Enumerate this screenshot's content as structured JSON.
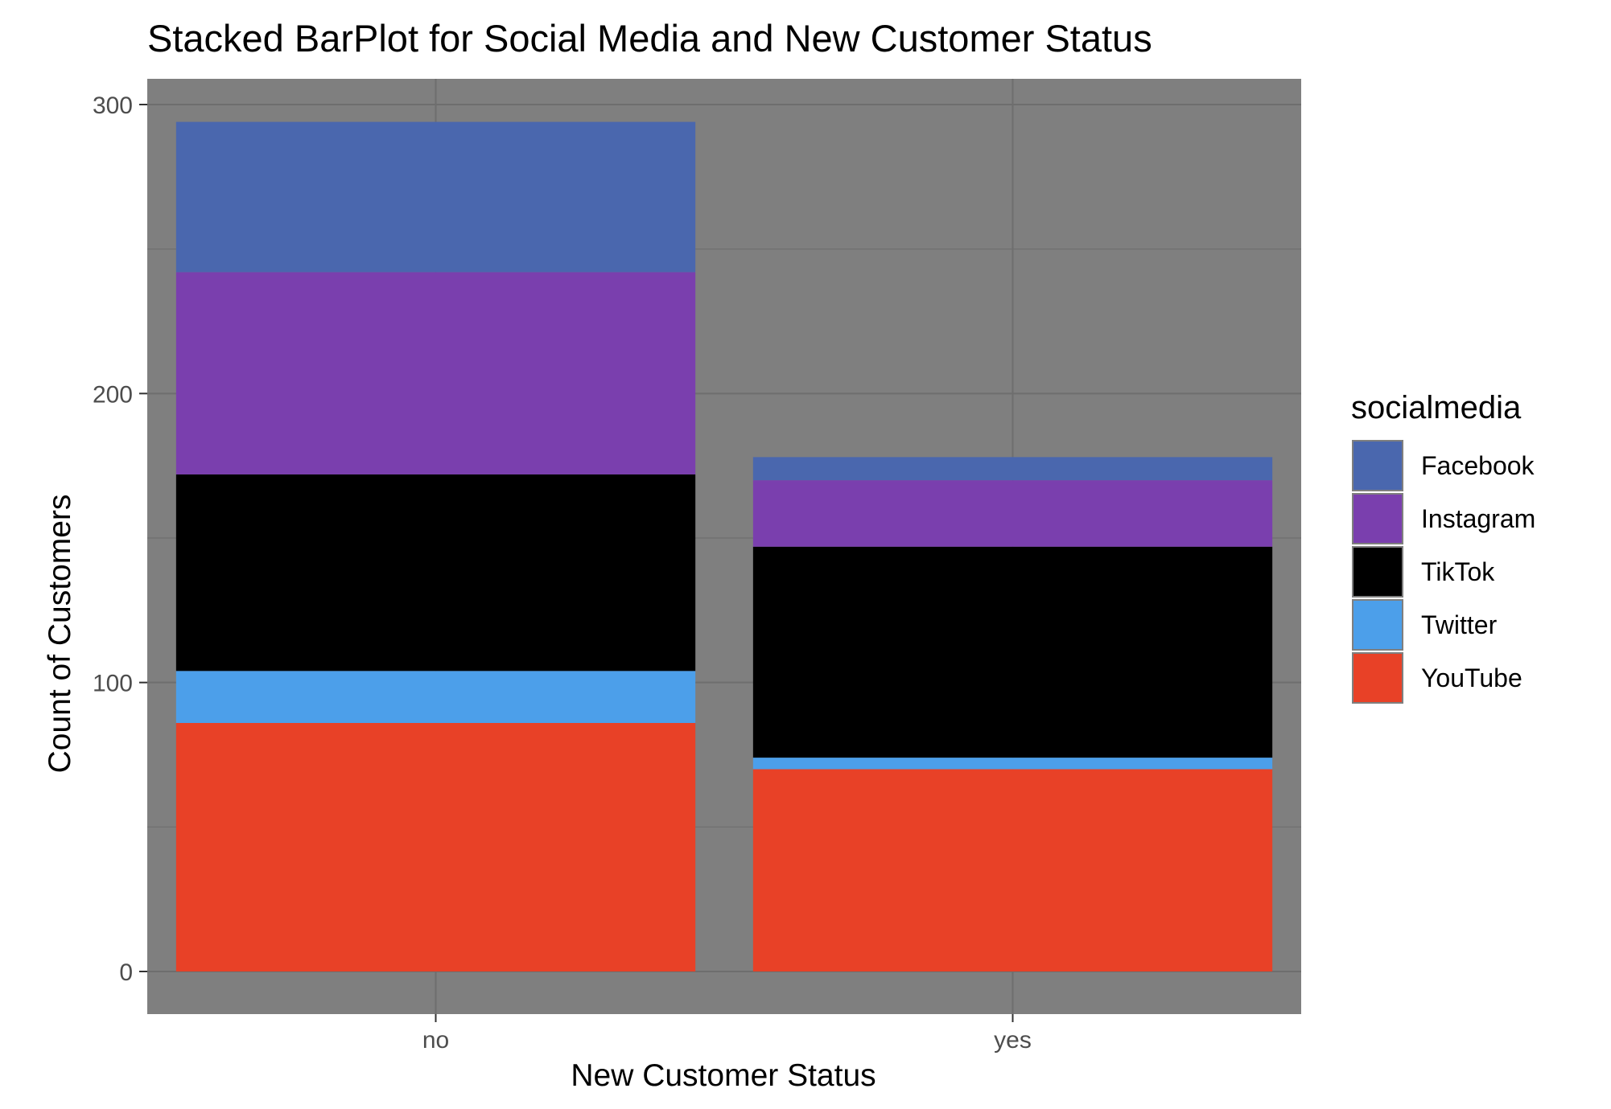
{
  "chart_data": {
    "type": "bar",
    "stacked": true,
    "title": "Stacked BarPlot for Social Media and New Customer Status",
    "xlabel": "New Customer Status",
    "ylabel": "Count of Customers",
    "categories": [
      "no",
      "yes"
    ],
    "ylim": [
      0,
      310
    ],
    "yticks": [
      0,
      100,
      200,
      300
    ],
    "grid": true,
    "legend": {
      "title": "socialmedia",
      "placement": "right"
    },
    "series": [
      {
        "name": "YouTube",
        "values": [
          86,
          70
        ],
        "color": "#E84127"
      },
      {
        "name": "Twitter",
        "values": [
          18,
          4
        ],
        "color": "#4C9FEA"
      },
      {
        "name": "TikTok",
        "values": [
          68,
          73
        ],
        "color": "#000000"
      },
      {
        "name": "Instagram",
        "values": [
          70,
          23
        ],
        "color": "#7A3FAE"
      },
      {
        "name": "Facebook",
        "values": [
          52,
          8
        ],
        "color": "#4A67AE"
      }
    ],
    "legend_order": [
      "Facebook",
      "Instagram",
      "TikTok",
      "Twitter",
      "YouTube"
    ],
    "panel_background": "#7F7F7F",
    "grid_color": "#6E6E6E"
  }
}
